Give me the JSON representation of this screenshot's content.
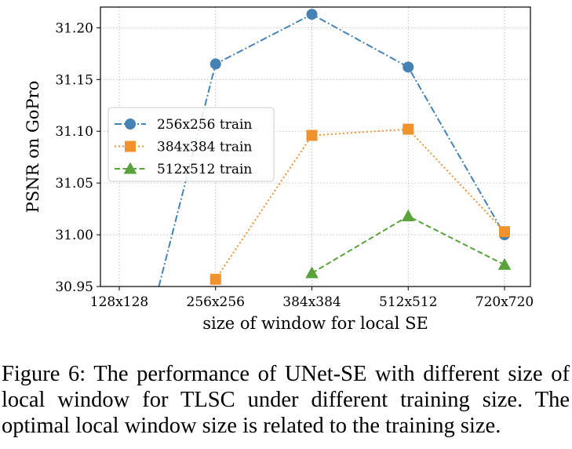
{
  "chart_data": {
    "type": "line",
    "title": "",
    "xlabel": "size of window for local SE",
    "ylabel": "PSNR on GoPro",
    "categories": [
      "128x128",
      "256x256",
      "384x384",
      "512x512",
      "720x720"
    ],
    "ylim": [
      30.95,
      31.22
    ],
    "yticks": [
      "30.95",
      "31.00",
      "31.05",
      "31.10",
      "31.15",
      "31.20"
    ],
    "grid": true,
    "legend_position": "center-left",
    "series": [
      {
        "name": "256x256 train",
        "color": "#4682b4",
        "marker": "circle",
        "linestyle": "dashdot",
        "values": [
          30.8,
          31.165,
          31.213,
          31.162,
          31.0
        ]
      },
      {
        "name": "384x384 train",
        "color": "#f0922e",
        "marker": "square",
        "linestyle": "dotted",
        "values": [
          null,
          30.957,
          31.096,
          31.102,
          31.003
        ]
      },
      {
        "name": "512x512 train",
        "color": "#5aa33c",
        "marker": "triangle",
        "linestyle": "dashed",
        "values": [
          null,
          null,
          30.963,
          31.018,
          30.971
        ]
      }
    ]
  },
  "caption": "Figure 6: The performance of UNet-SE with different size of local window for TLSC under different training size. The optimal local window size is related to the training size."
}
